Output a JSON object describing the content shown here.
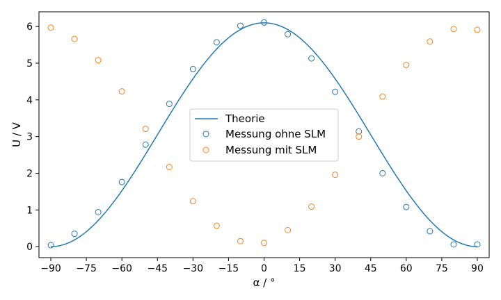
{
  "chart_data": {
    "type": "line",
    "title": "",
    "xlabel": "α / °",
    "ylabel": "U / V",
    "xlim": [
      -95,
      95
    ],
    "ylim": [
      -0.3,
      6.4
    ],
    "xticks": [
      -90,
      -75,
      -60,
      -45,
      -30,
      -15,
      0,
      15,
      30,
      45,
      60,
      75,
      90
    ],
    "yticks": [
      0,
      1,
      2,
      3,
      4,
      5,
      6
    ],
    "x_tick_labels": [
      "−90",
      "−75",
      "−60",
      "−45",
      "−30",
      "−15",
      "0",
      "15",
      "30",
      "45",
      "60",
      "75",
      "90"
    ],
    "y_tick_labels": [
      "0",
      "1",
      "2",
      "3",
      "4",
      "5",
      "6"
    ],
    "grid": false,
    "legend_position": "center",
    "series": [
      {
        "name": "Theorie",
        "kind": "line",
        "color": "#1f77b4",
        "model": "cos2",
        "amplitude": 6.1,
        "offset": 0.0
      },
      {
        "name": "Messung ohne SLM",
        "kind": "scatter",
        "color": "#1f77b4",
        "x": [
          -90,
          -80,
          -70,
          -60,
          -50,
          -40,
          -30,
          -20,
          -10,
          0,
          10,
          20,
          30,
          40,
          50,
          60,
          70,
          80,
          90
        ],
        "y": [
          0.04,
          0.35,
          0.94,
          1.76,
          2.78,
          3.89,
          4.84,
          5.57,
          6.02,
          6.11,
          5.79,
          5.13,
          4.22,
          3.14,
          2.0,
          1.08,
          0.42,
          0.06,
          0.06
        ]
      },
      {
        "name": "Messung mit SLM",
        "kind": "scatter",
        "color": "#ff7f0e",
        "x": [
          -90,
          -80,
          -70,
          -60,
          -50,
          -40,
          -30,
          -20,
          -10,
          0,
          10,
          20,
          30,
          40,
          50,
          60,
          70,
          80,
          90
        ],
        "y": [
          5.97,
          5.66,
          5.08,
          4.23,
          3.21,
          2.17,
          1.24,
          0.57,
          0.15,
          0.1,
          0.45,
          1.09,
          1.96,
          3.0,
          4.09,
          4.95,
          5.59,
          5.93,
          5.91
        ]
      }
    ]
  }
}
